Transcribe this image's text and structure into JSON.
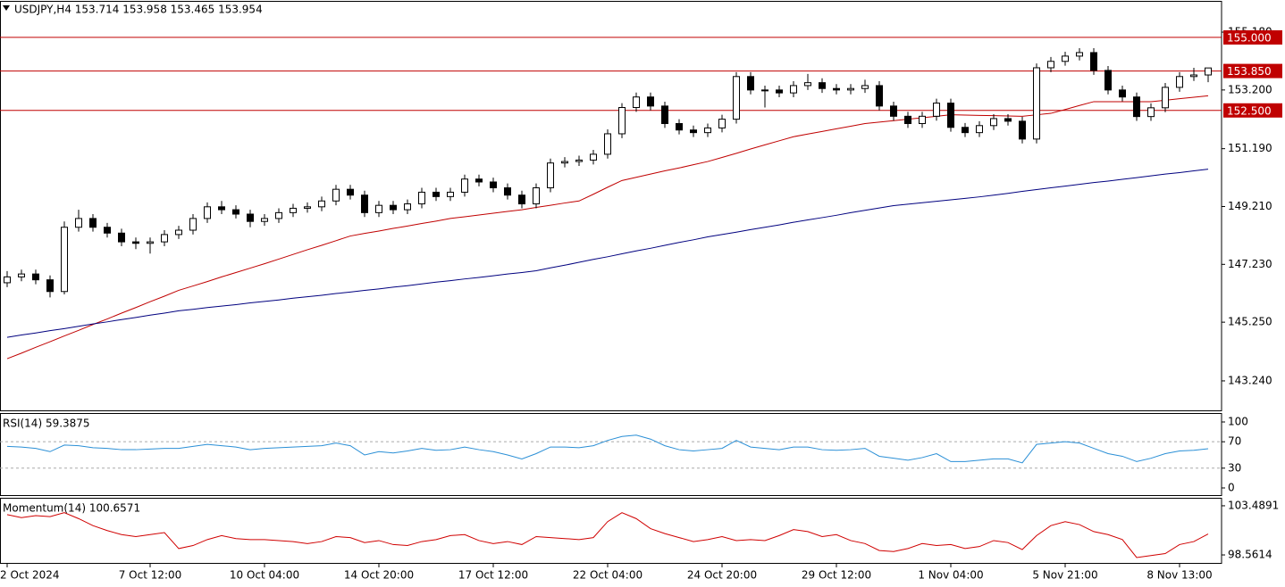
{
  "chart_data": [
    {
      "type": "candlestick",
      "title": "USDJPY,H4 153.714 153.958 153.465 153.954",
      "categories": [
        "2 Oct 2024",
        null,
        null,
        null,
        null,
        null,
        null,
        null,
        null,
        null,
        "7 Oct 12:00",
        null,
        null,
        null,
        null,
        null,
        null,
        null,
        "10 Oct 04:00",
        null,
        null,
        null,
        null,
        null,
        null,
        null,
        "14 Oct 20:00",
        null,
        null,
        null,
        null,
        null,
        null,
        null,
        "17 Oct 12:00",
        null,
        null,
        null,
        null,
        null,
        null,
        null,
        "22 Oct 04:00",
        null,
        null,
        null,
        null,
        null,
        null,
        null,
        "24 Oct 20:00",
        null,
        null,
        null,
        null,
        null,
        null,
        null,
        "29 Oct 12:00",
        null,
        null,
        null,
        null,
        null,
        null,
        null,
        "1 Nov 04:00",
        null,
        null,
        null,
        null,
        null,
        null,
        null,
        "5 Nov 21:00",
        null,
        null,
        null,
        null,
        null,
        null,
        null,
        "8 Nov 13:00",
        null,
        null
      ],
      "ohlc": [
        [
          146.6,
          147.0,
          146.45,
          146.8
        ],
        [
          146.8,
          147.05,
          146.65,
          146.9
        ],
        [
          146.9,
          147.05,
          146.55,
          146.7
        ],
        [
          146.7,
          146.85,
          146.1,
          146.3
        ],
        [
          146.3,
          148.7,
          146.2,
          148.5
        ],
        [
          148.5,
          149.1,
          148.35,
          148.8
        ],
        [
          148.8,
          148.95,
          148.35,
          148.5
        ],
        [
          148.5,
          148.65,
          148.15,
          148.3
        ],
        [
          148.3,
          148.45,
          147.85,
          148.0
        ],
        [
          148.0,
          148.15,
          147.75,
          147.95
        ],
        [
          147.95,
          148.15,
          147.6,
          148.0
        ],
        [
          148.0,
          148.4,
          147.85,
          148.25
        ],
        [
          148.25,
          148.55,
          148.1,
          148.4
        ],
        [
          148.4,
          148.95,
          148.25,
          148.8
        ],
        [
          148.8,
          149.35,
          148.65,
          149.2
        ],
        [
          149.2,
          149.4,
          148.95,
          149.1
        ],
        [
          149.1,
          149.25,
          148.8,
          148.95
        ],
        [
          148.95,
          149.1,
          148.5,
          148.7
        ],
        [
          148.7,
          148.95,
          148.55,
          148.8
        ],
        [
          148.8,
          149.15,
          148.65,
          149.0
        ],
        [
          149.0,
          149.3,
          148.85,
          149.15
        ],
        [
          149.15,
          149.35,
          149.0,
          149.2
        ],
        [
          149.2,
          149.55,
          149.05,
          149.4
        ],
        [
          149.4,
          149.95,
          149.25,
          149.8
        ],
        [
          149.8,
          149.95,
          149.45,
          149.6
        ],
        [
          149.6,
          149.75,
          148.85,
          149.0
        ],
        [
          149.0,
          149.4,
          148.85,
          149.25
        ],
        [
          149.25,
          149.4,
          148.95,
          149.1
        ],
        [
          149.1,
          149.45,
          148.95,
          149.3
        ],
        [
          149.3,
          149.85,
          149.15,
          149.7
        ],
        [
          149.7,
          149.85,
          149.4,
          149.55
        ],
        [
          149.55,
          149.85,
          149.4,
          149.7
        ],
        [
          149.7,
          150.3,
          149.55,
          150.15
        ],
        [
          150.15,
          150.3,
          149.9,
          150.05
        ],
        [
          150.05,
          150.2,
          149.7,
          149.85
        ],
        [
          149.85,
          150.0,
          149.45,
          149.6
        ],
        [
          149.6,
          149.75,
          149.15,
          149.3
        ],
        [
          149.3,
          150.0,
          149.15,
          149.85
        ],
        [
          149.85,
          150.85,
          149.7,
          150.7
        ],
        [
          150.7,
          150.9,
          150.55,
          150.75
        ],
        [
          150.75,
          150.95,
          150.6,
          150.8
        ],
        [
          150.8,
          151.15,
          150.65,
          151.0
        ],
        [
          151.0,
          151.85,
          150.85,
          151.7
        ],
        [
          151.7,
          152.75,
          151.55,
          152.6
        ],
        [
          152.6,
          153.11,
          152.45,
          152.96
        ],
        [
          152.96,
          153.11,
          152.5,
          152.65
        ],
        [
          152.65,
          152.8,
          151.9,
          152.05
        ],
        [
          152.05,
          152.2,
          151.68,
          151.83
        ],
        [
          151.83,
          151.98,
          151.59,
          151.74
        ],
        [
          151.74,
          152.05,
          151.59,
          151.9
        ],
        [
          151.9,
          152.35,
          151.75,
          152.2
        ],
        [
          152.2,
          153.81,
          152.05,
          153.66
        ],
        [
          153.66,
          153.81,
          153.05,
          153.2
        ],
        [
          153.2,
          153.35,
          152.6,
          153.2
        ],
        [
          153.2,
          153.35,
          152.95,
          153.1
        ],
        [
          153.1,
          153.5,
          152.95,
          153.35
        ],
        [
          153.35,
          153.75,
          153.2,
          153.45
        ],
        [
          153.45,
          153.6,
          153.1,
          153.25
        ],
        [
          153.25,
          153.4,
          153.05,
          153.2
        ],
        [
          153.2,
          153.4,
          153.05,
          153.25
        ],
        [
          153.25,
          153.55,
          153.1,
          153.35
        ],
        [
          153.35,
          153.5,
          152.5,
          152.65
        ],
        [
          152.65,
          152.8,
          152.15,
          152.3
        ],
        [
          152.3,
          152.45,
          151.9,
          152.05
        ],
        [
          152.05,
          152.45,
          151.9,
          152.3
        ],
        [
          152.3,
          152.9,
          152.15,
          152.75
        ],
        [
          152.75,
          152.9,
          151.77,
          151.92
        ],
        [
          151.92,
          152.07,
          151.59,
          151.74
        ],
        [
          151.74,
          152.13,
          151.59,
          151.98
        ],
        [
          151.98,
          152.37,
          151.83,
          152.22
        ],
        [
          152.22,
          152.37,
          151.98,
          152.13
        ],
        [
          152.13,
          152.28,
          151.37,
          151.52
        ],
        [
          151.52,
          154.11,
          151.37,
          153.96
        ],
        [
          153.96,
          154.33,
          153.81,
          154.18
        ],
        [
          154.18,
          154.51,
          154.03,
          154.36
        ],
        [
          154.36,
          154.63,
          154.21,
          154.48
        ],
        [
          154.48,
          154.63,
          153.72,
          153.87
        ],
        [
          153.87,
          154.02,
          153.05,
          153.2
        ],
        [
          153.2,
          153.35,
          152.81,
          152.96
        ],
        [
          152.96,
          153.11,
          152.14,
          152.29
        ],
        [
          152.29,
          152.74,
          152.14,
          152.59
        ],
        [
          152.59,
          153.44,
          152.44,
          153.29
        ],
        [
          153.29,
          153.81,
          153.14,
          153.66
        ],
        [
          153.66,
          153.96,
          153.51,
          153.714
        ],
        [
          153.714,
          153.958,
          153.465,
          153.954
        ]
      ],
      "series": [
        {
          "color": "#c00000",
          "values": [
            144.0,
            144.19,
            144.39,
            144.58,
            144.78,
            144.97,
            145.17,
            145.36,
            145.56,
            145.75,
            145.95,
            146.14,
            146.34,
            146.49,
            146.64,
            146.8,
            146.95,
            147.1,
            147.25,
            147.41,
            147.57,
            147.73,
            147.88,
            148.04,
            148.2,
            148.29,
            148.37,
            148.46,
            148.54,
            148.63,
            148.71,
            148.8,
            148.86,
            148.92,
            148.98,
            149.04,
            149.1,
            149.18,
            149.25,
            149.33,
            149.4,
            149.63,
            149.87,
            150.1,
            150.21,
            150.32,
            150.43,
            150.53,
            150.64,
            150.75,
            150.89,
            151.03,
            151.18,
            151.32,
            151.46,
            151.6,
            151.69,
            151.78,
            151.87,
            151.96,
            152.05,
            152.1,
            152.15,
            152.2,
            152.25,
            152.3,
            152.35,
            152.34,
            152.33,
            152.32,
            152.31,
            152.3,
            152.35,
            152.4,
            152.53,
            152.67,
            152.8,
            152.8,
            152.8,
            152.8,
            152.8,
            152.85,
            152.9,
            152.95,
            153.0
          ]
        },
        {
          "color": "#00007f",
          "values": [
            144.73,
            144.81,
            144.88,
            144.96,
            145.03,
            145.11,
            145.19,
            145.26,
            145.34,
            145.41,
            145.49,
            145.56,
            145.64,
            145.69,
            145.75,
            145.8,
            145.85,
            145.91,
            145.96,
            146.01,
            146.07,
            146.12,
            146.17,
            146.23,
            146.28,
            146.34,
            146.39,
            146.45,
            146.5,
            146.56,
            146.62,
            146.67,
            146.73,
            146.78,
            146.84,
            146.9,
            146.95,
            147.01,
            147.11,
            147.2,
            147.3,
            147.4,
            147.49,
            147.59,
            147.69,
            147.78,
            147.88,
            147.98,
            148.07,
            148.17,
            148.25,
            148.33,
            148.42,
            148.5,
            148.58,
            148.67,
            148.75,
            148.83,
            148.91,
            149.0,
            149.08,
            149.16,
            149.24,
            149.29,
            149.34,
            149.39,
            149.44,
            149.49,
            149.54,
            149.6,
            149.66,
            149.73,
            149.79,
            149.85,
            149.91,
            149.97,
            150.03,
            150.08,
            150.14,
            150.2,
            150.26,
            150.32,
            150.37,
            150.43,
            150.49
          ]
        }
      ],
      "levels": [
        {
          "value": 155,
          "label": "155.000"
        },
        {
          "value": 153.85,
          "label": "153.850"
        },
        {
          "value": 152.5,
          "label": "152.500"
        }
      ],
      "level_color": "#c00000",
      "ylim": [
        142.2,
        156.25
      ],
      "yticks": [
        {
          "value": 155.18,
          "label": "155.180"
        },
        {
          "value": 153.2,
          "label": "153.200"
        },
        {
          "value": 151.19,
          "label": "151.190"
        },
        {
          "value": 149.21,
          "label": "149.210"
        },
        {
          "value": 147.23,
          "label": "147.230"
        },
        {
          "value": 145.25,
          "label": "145.250"
        },
        {
          "value": 143.24,
          "label": "143.240"
        }
      ]
    },
    {
      "type": "line",
      "title": "RSI(14) 59.3875",
      "series": [
        {
          "color": "#2a8fd6",
          "values": [
            63,
            62,
            60,
            55,
            65,
            64,
            61,
            60,
            58,
            58,
            59,
            60,
            60,
            63,
            66,
            64,
            62,
            58,
            60,
            61,
            62,
            63,
            64,
            68,
            64,
            50,
            55,
            53,
            56,
            60,
            57,
            58,
            62,
            58,
            55,
            50,
            44,
            52,
            62,
            62,
            61,
            64,
            72,
            78,
            80,
            74,
            64,
            58,
            56,
            58,
            60,
            72,
            62,
            60,
            58,
            62,
            62,
            58,
            57,
            58,
            60,
            48,
            45,
            42,
            46,
            52,
            40,
            40,
            42,
            44,
            44,
            38,
            66,
            68,
            70,
            68,
            60,
            52,
            48,
            40,
            45,
            52,
            56,
            57,
            59.3875
          ]
        }
      ],
      "levels": [
        30,
        70
      ],
      "ylim": [
        -12.2,
        113.5
      ],
      "yticks": [
        100,
        70,
        30,
        0
      ]
    },
    {
      "type": "line",
      "title": "Momentum(14) 100.6571",
      "series": [
        {
          "color": "#d00000",
          "values": [
            102.6,
            102.3,
            102.5,
            102.4,
            102.8,
            102.2,
            101.5,
            101.0,
            100.6,
            100.4,
            100.6,
            100.8,
            99.2,
            99.5,
            100.1,
            100.5,
            100.2,
            100.1,
            100.1,
            100.0,
            99.9,
            99.7,
            99.9,
            100.4,
            100.3,
            99.8,
            100.0,
            99.6,
            99.5,
            99.9,
            100.1,
            100.5,
            100.6,
            100.0,
            99.7,
            99.9,
            99.6,
            100.4,
            100.3,
            100.2,
            100.1,
            100.3,
            101.9,
            102.8,
            102.2,
            101.2,
            100.7,
            100.3,
            99.9,
            100.1,
            100.4,
            100.0,
            100.1,
            100.0,
            100.5,
            101.1,
            100.9,
            100.4,
            100.6,
            100.0,
            99.7,
            99.0,
            98.9,
            99.2,
            99.7,
            99.5,
            99.6,
            99.2,
            99.4,
            100.0,
            99.8,
            99.1,
            100.5,
            101.5,
            101.9,
            101.6,
            100.9,
            100.6,
            100.1,
            98.3,
            98.5,
            98.7,
            99.6,
            99.9,
            100.6571
          ]
        }
      ],
      "ylim": [
        97.67,
        104.29
      ],
      "yticks": [
        103.4891,
        98.5614
      ]
    }
  ]
}
